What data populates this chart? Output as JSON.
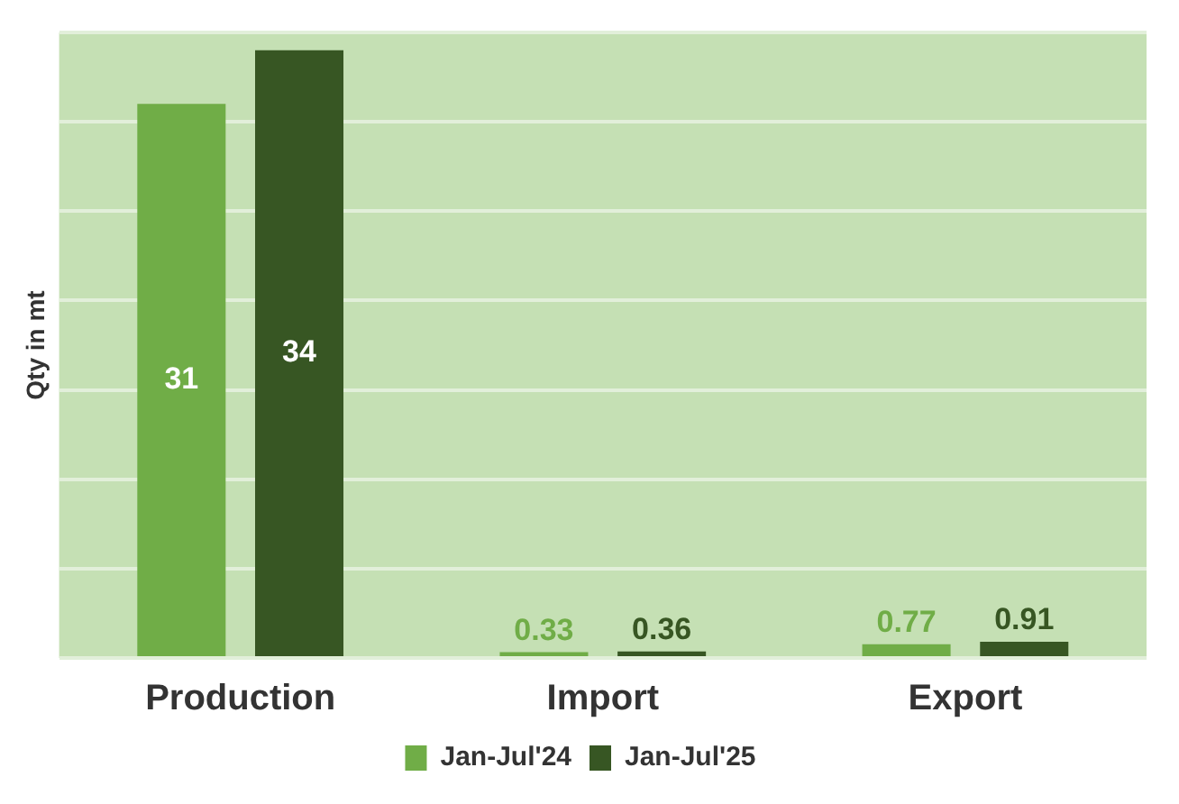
{
  "chart_data": {
    "type": "bar",
    "ylabel": "Qty in mt",
    "categories": [
      "Production",
      "Import",
      "Export"
    ],
    "series": [
      {
        "name": "Jan-Jul'24",
        "color": "#70ad47",
        "values": [
          31,
          0.33,
          0.77
        ]
      },
      {
        "name": "Jan-Jul'25",
        "color": "#375623",
        "values": [
          34,
          0.36,
          0.91
        ]
      }
    ],
    "data_labels": true,
    "legend": "bottom",
    "grid": "y",
    "tick_labels": "x"
  }
}
